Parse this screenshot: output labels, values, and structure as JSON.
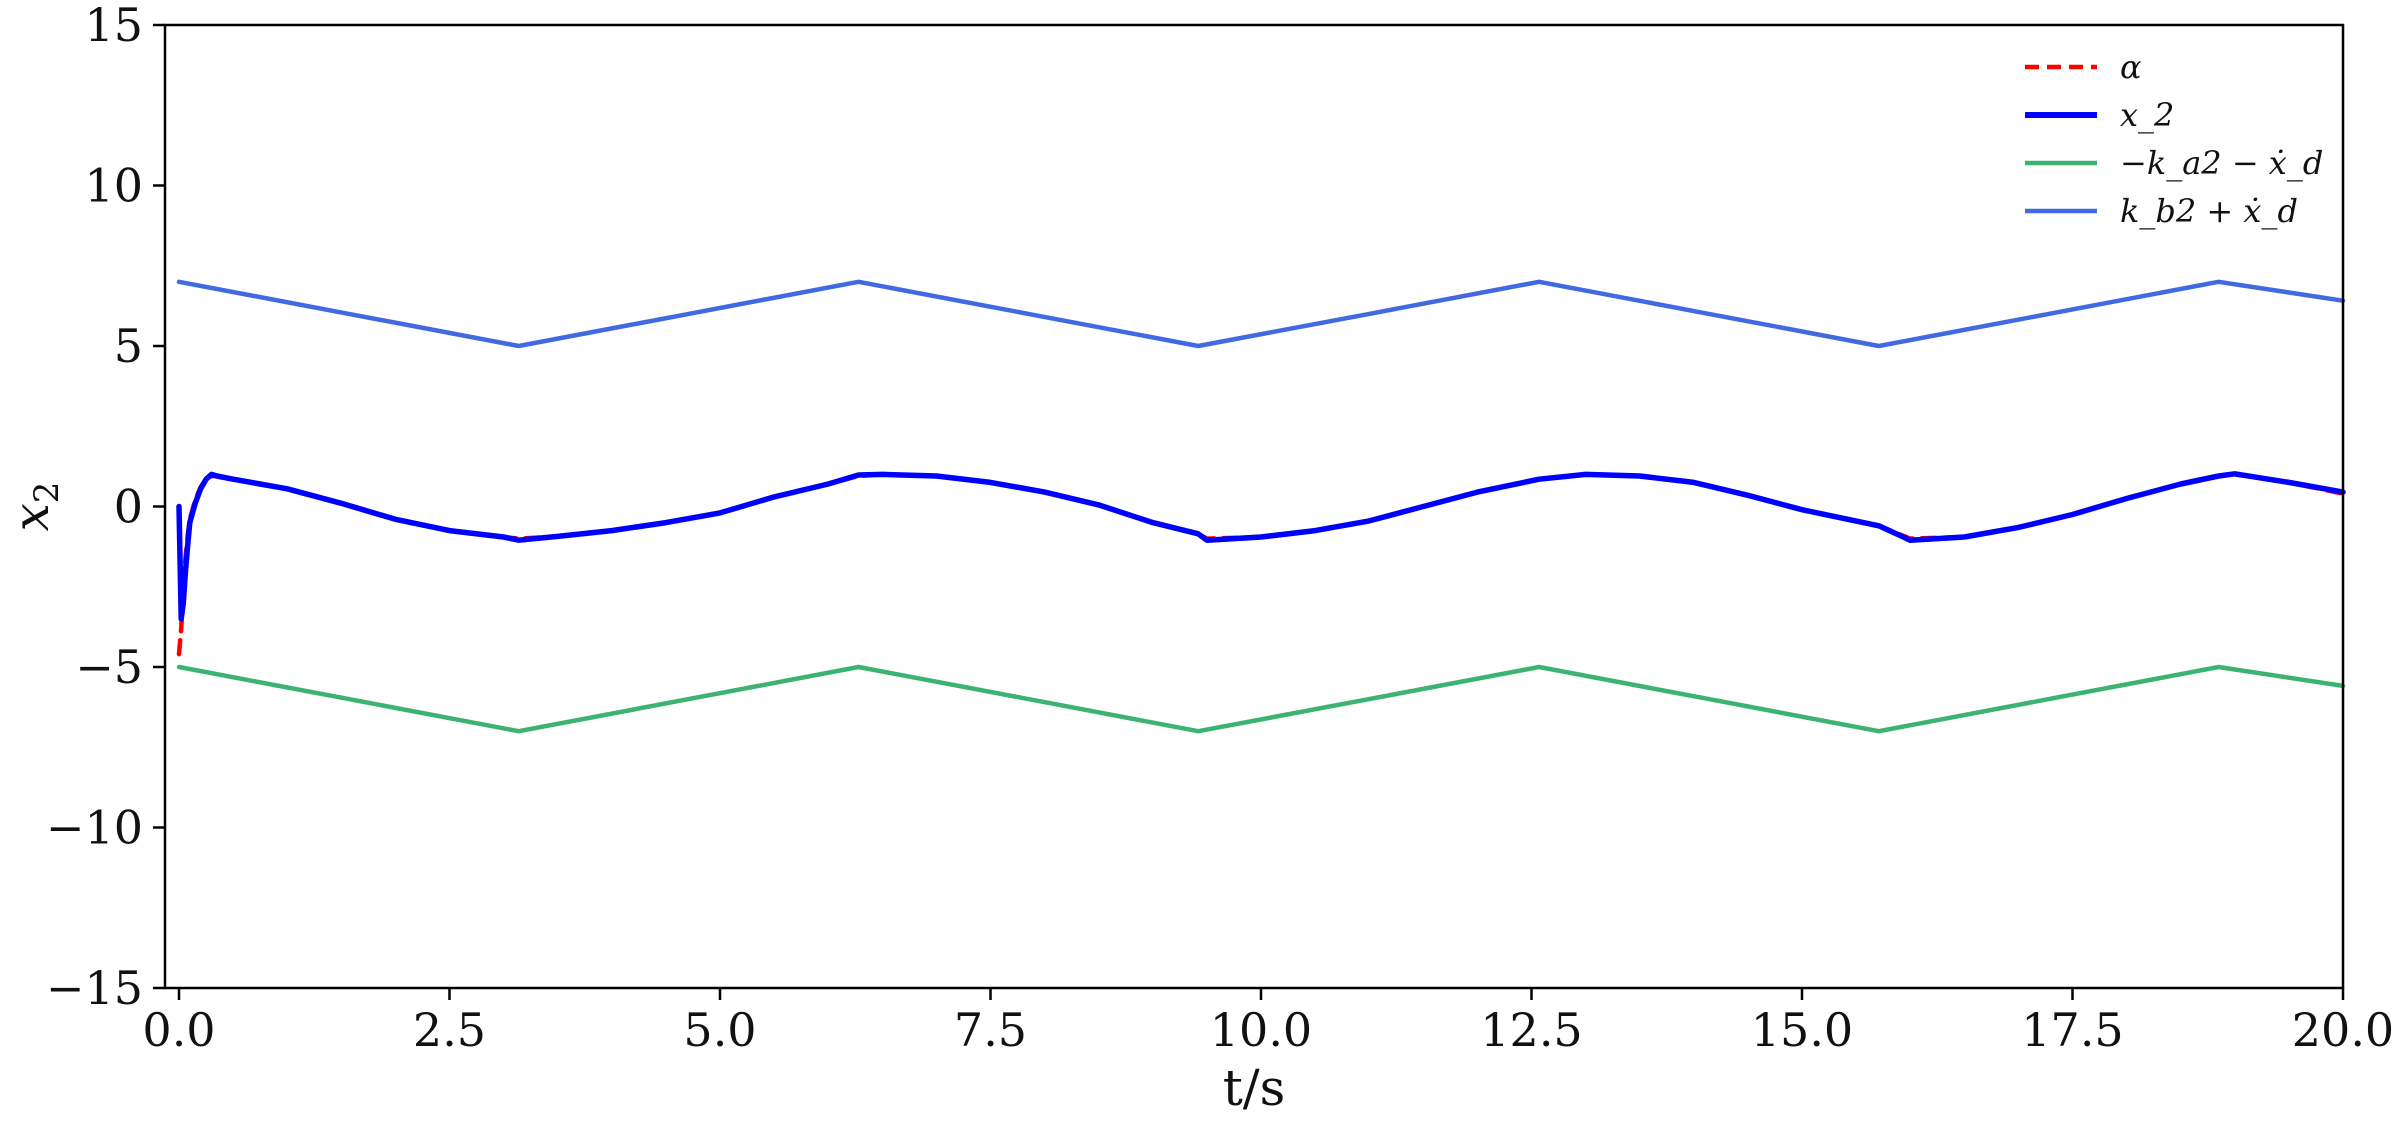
{
  "chart_data": {
    "type": "line",
    "title": "",
    "xlabel": "t/s",
    "ylabel": "x_2",
    "xlim": [
      0,
      20
    ],
    "ylim": [
      -15,
      15
    ],
    "x_ticks": [
      0,
      2.5,
      5,
      7.5,
      10,
      12.5,
      15,
      17.5,
      20
    ],
    "x_tick_labels": [
      "0.0",
      "2.5",
      "5.0",
      "7.5",
      "10.0",
      "12.5",
      "15.0",
      "17.5",
      "20.0"
    ],
    "y_ticks": [
      -15,
      -10,
      -5,
      0,
      5,
      10,
      15
    ],
    "y_tick_labels": [
      "−15",
      "−10",
      "−5",
      "0",
      "5",
      "10",
      "15"
    ],
    "grid": false,
    "legend_position": "top-right",
    "series": [
      {
        "name": "α",
        "color": "#ff0000",
        "style": "dashed",
        "x": [
          0,
          0.02,
          0.04,
          0.06,
          0.08,
          0.1,
          0.15,
          0.2,
          0.25,
          0.3,
          0.35,
          0.5,
          0.75,
          1,
          1.5,
          2,
          2.5,
          3,
          3.14,
          3.5,
          4,
          4.5,
          5,
          5.5,
          6,
          6.28,
          6.5,
          7,
          7.5,
          8,
          8.5,
          9,
          9.42,
          9.5,
          10,
          10.5,
          11,
          11.5,
          12,
          12.57,
          13,
          13.5,
          14,
          14.5,
          15,
          15.71,
          16,
          16.5,
          17,
          17.5,
          18,
          18.5,
          18.85,
          19,
          19.5,
          20
        ],
        "y": [
          -4.6,
          -3.8,
          -2.6,
          -1.6,
          -0.9,
          -0.4,
          0.2,
          0.6,
          0.85,
          0.95,
          0.94,
          0.85,
          0.7,
          0.55,
          0.1,
          -0.4,
          -0.75,
          -0.95,
          -1.0,
          -0.93,
          -0.75,
          -0.5,
          -0.2,
          0.3,
          0.7,
          0.95,
          1.0,
          0.95,
          0.75,
          0.45,
          0.05,
          -0.5,
          -0.85,
          -1.0,
          -0.95,
          -0.75,
          -0.45,
          -0.0,
          0.45,
          0.85,
          1.0,
          0.95,
          0.75,
          0.35,
          -0.1,
          -0.6,
          -1.0,
          -0.95,
          -0.65,
          -0.25,
          0.25,
          0.7,
          0.95,
          1.0,
          0.75,
          0.4
        ]
      },
      {
        "name": "x_2",
        "color": "#0000ff",
        "style": "solid",
        "x": [
          0,
          0.02,
          0.04,
          0.06,
          0.08,
          0.1,
          0.15,
          0.2,
          0.25,
          0.3,
          0.35,
          0.5,
          0.75,
          1,
          1.5,
          2,
          2.5,
          3,
          3.14,
          3.5,
          4,
          4.5,
          5,
          5.5,
          6,
          6.28,
          6.5,
          7,
          7.5,
          8,
          8.5,
          9,
          9.42,
          9.5,
          10,
          10.5,
          11,
          11.5,
          12,
          12.57,
          13,
          13.5,
          14,
          14.5,
          15,
          15.71,
          16,
          16.5,
          17,
          17.5,
          18,
          18.5,
          18.85,
          19,
          19.5,
          20
        ],
        "y": [
          0.0,
          -3.5,
          -3.0,
          -2.0,
          -1.2,
          -0.5,
          0.1,
          0.55,
          0.85,
          1.0,
          0.95,
          0.85,
          0.7,
          0.55,
          0.1,
          -0.4,
          -0.75,
          -0.95,
          -1.05,
          -0.93,
          -0.75,
          -0.5,
          -0.2,
          0.3,
          0.7,
          0.98,
          1.0,
          0.95,
          0.75,
          0.45,
          0.05,
          -0.5,
          -0.85,
          -1.05,
          -0.95,
          -0.75,
          -0.45,
          -0.0,
          0.45,
          0.85,
          1.0,
          0.95,
          0.75,
          0.35,
          -0.1,
          -0.6,
          -1.05,
          -0.95,
          -0.65,
          -0.25,
          0.25,
          0.7,
          0.95,
          1.02,
          0.75,
          0.45
        ]
      },
      {
        "name": "−k_a2 − ẋ_d",
        "color": "#3cb371",
        "style": "solid",
        "x": [
          0,
          1.57,
          3.14,
          4.71,
          6.28,
          7.85,
          9.42,
          11.0,
          12.57,
          14.14,
          15.71,
          17.28,
          18.85,
          20
        ],
        "y": [
          -5.0,
          -6.0,
          -7.0,
          -6.0,
          -5.0,
          -6.0,
          -7.0,
          -6.0,
          -5.0,
          -6.0,
          -7.0,
          -6.0,
          -5.0,
          -5.59
        ]
      },
      {
        "name": "k_b2 + ẋ_d",
        "color": "#4169e1",
        "style": "solid",
        "x": [
          0,
          1.57,
          3.14,
          4.71,
          6.28,
          7.85,
          9.42,
          11.0,
          12.57,
          14.14,
          15.71,
          17.28,
          18.85,
          20
        ],
        "y": [
          7.0,
          6.0,
          5.0,
          6.0,
          7.0,
          6.0,
          5.0,
          6.0,
          7.0,
          6.0,
          5.0,
          6.0,
          7.0,
          6.41
        ]
      }
    ]
  }
}
